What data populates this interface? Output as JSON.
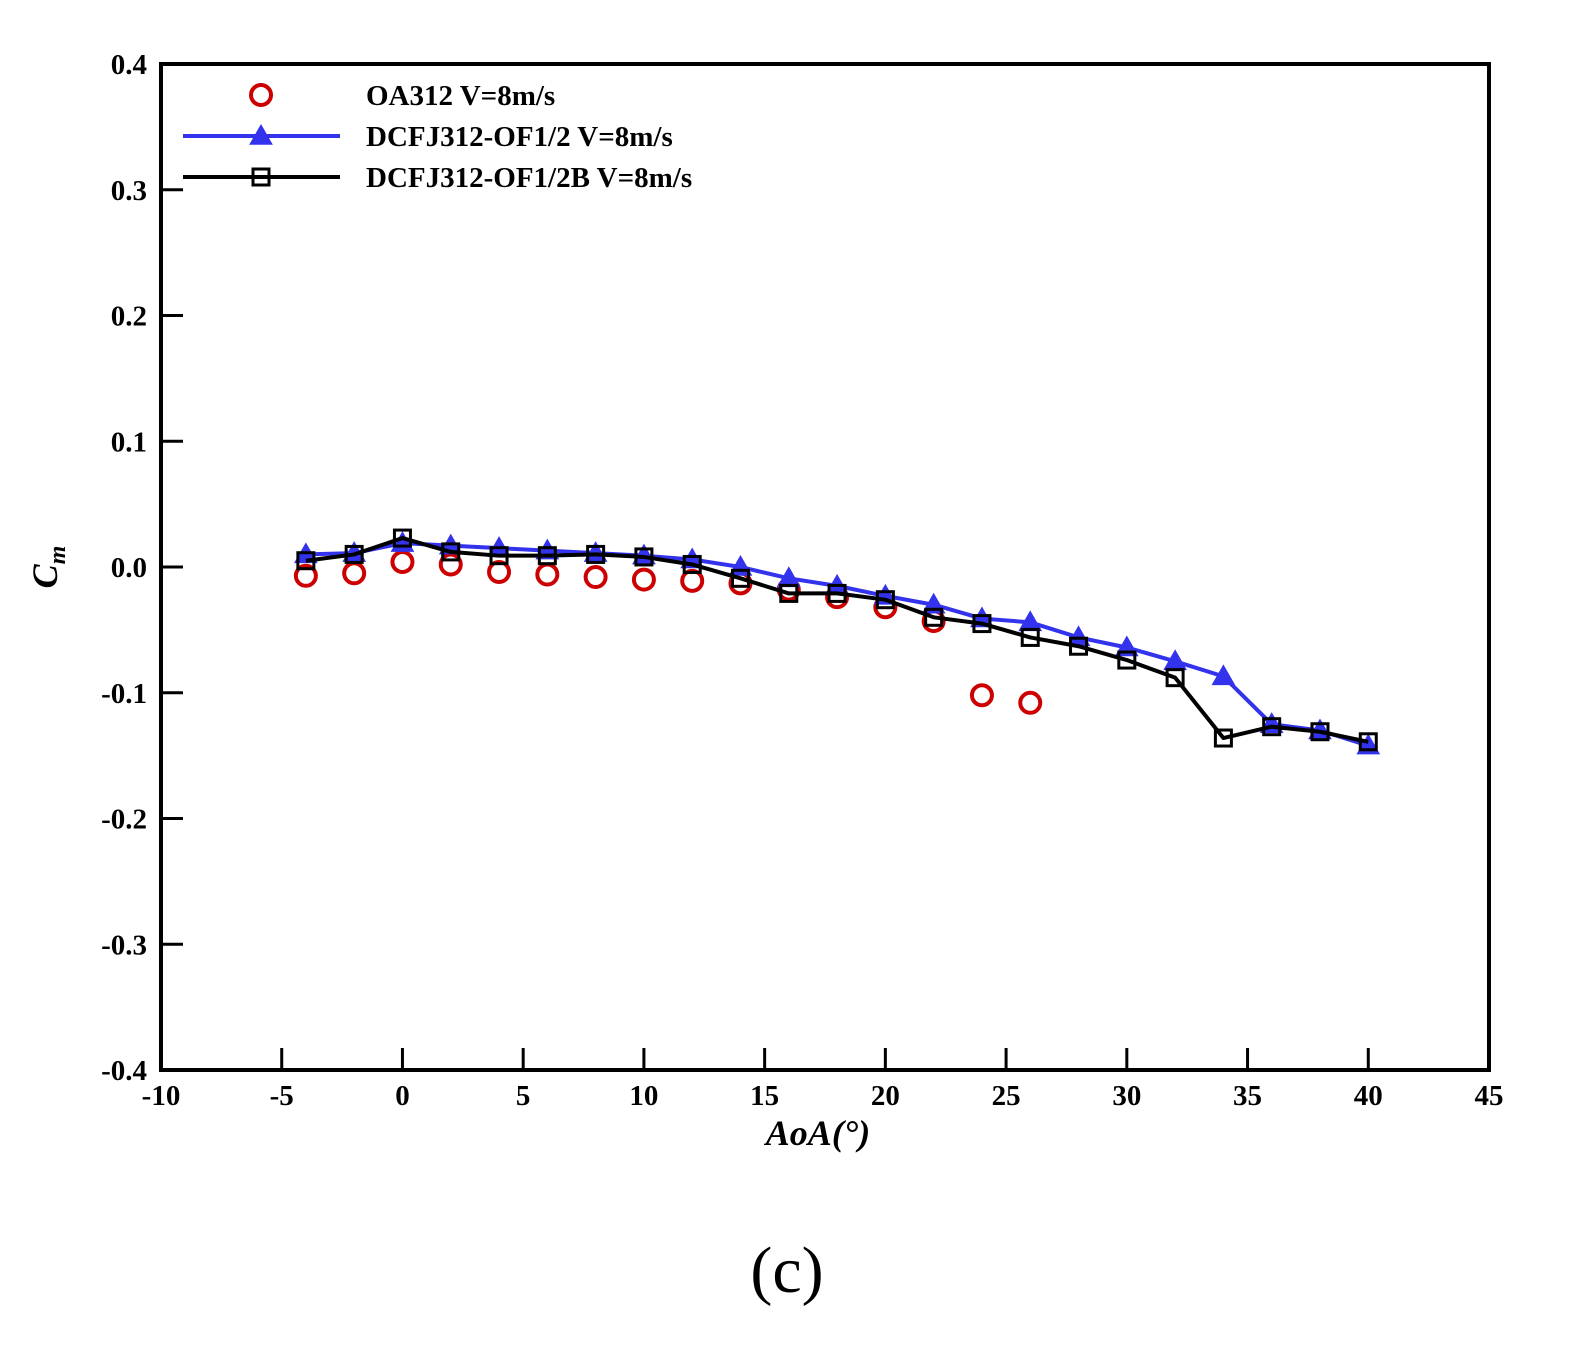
{
  "chart_data": {
    "type": "line",
    "xlabel": "AoA(°)",
    "ylabel_main": "C",
    "ylabel_sub": "m",
    "xlim": [
      -10,
      45
    ],
    "ylim": [
      -0.4,
      0.4
    ],
    "xticks": [
      -10,
      -5,
      0,
      5,
      10,
      15,
      20,
      25,
      30,
      35,
      40,
      45
    ],
    "xtick_labels": [
      "-10",
      "-5",
      "0",
      "5",
      "10",
      "15",
      "20",
      "25",
      "30",
      "35",
      "40",
      "45"
    ],
    "yticks": [
      -0.4,
      -0.3,
      -0.2,
      -0.1,
      0.0,
      0.1,
      0.2,
      0.3,
      0.4
    ],
    "ytick_labels": [
      "-0.4",
      "-0.3",
      "-0.2",
      "-0.1",
      "0.0",
      "0.1",
      "0.2",
      "0.3",
      "0.4"
    ],
    "grid": false,
    "legend_position": "top-left",
    "series": [
      {
        "name": "OA312  V=8m/s",
        "color": "#cc0000",
        "marker": "circle",
        "line": false,
        "x": [
          -4,
          -2,
          0,
          2,
          4,
          6,
          8,
          10,
          12,
          14,
          16,
          18,
          20,
          22,
          24,
          26
        ],
        "y": [
          -0.007,
          -0.005,
          0.004,
          0.002,
          -0.004,
          -0.006,
          -0.008,
          -0.01,
          -0.011,
          -0.013,
          -0.018,
          -0.024,
          -0.032,
          -0.043,
          -0.102,
          -0.108
        ]
      },
      {
        "name": "DCFJ312-OF1/2  V=8m/s",
        "color": "#3333ee",
        "marker": "triangle",
        "line": true,
        "x": [
          -4,
          -2,
          0,
          2,
          4,
          6,
          8,
          10,
          12,
          14,
          16,
          18,
          20,
          22,
          24,
          26,
          28,
          30,
          32,
          34,
          36,
          38,
          40
        ],
        "y": [
          0.01,
          0.011,
          0.019,
          0.017,
          0.015,
          0.013,
          0.011,
          0.009,
          0.006,
          0.0,
          -0.009,
          -0.015,
          -0.023,
          -0.03,
          -0.041,
          -0.044,
          -0.056,
          -0.064,
          -0.075,
          -0.087,
          -0.125,
          -0.13,
          -0.142
        ]
      },
      {
        "name": "DCFJ312-OF1/2B  V=8m/s",
        "color": "#000000",
        "marker": "square",
        "line": true,
        "x": [
          -4,
          -2,
          0,
          2,
          4,
          6,
          8,
          10,
          12,
          14,
          16,
          18,
          20,
          22,
          24,
          26,
          28,
          30,
          32,
          34,
          36,
          38,
          40
        ],
        "y": [
          0.005,
          0.01,
          0.023,
          0.012,
          0.009,
          0.009,
          0.01,
          0.008,
          0.002,
          -0.009,
          -0.021,
          -0.021,
          -0.026,
          -0.04,
          -0.045,
          -0.056,
          -0.063,
          -0.074,
          -0.088,
          -0.136,
          -0.127,
          -0.131,
          -0.139
        ]
      }
    ]
  },
  "figure": {
    "panel_label": "(c)"
  }
}
